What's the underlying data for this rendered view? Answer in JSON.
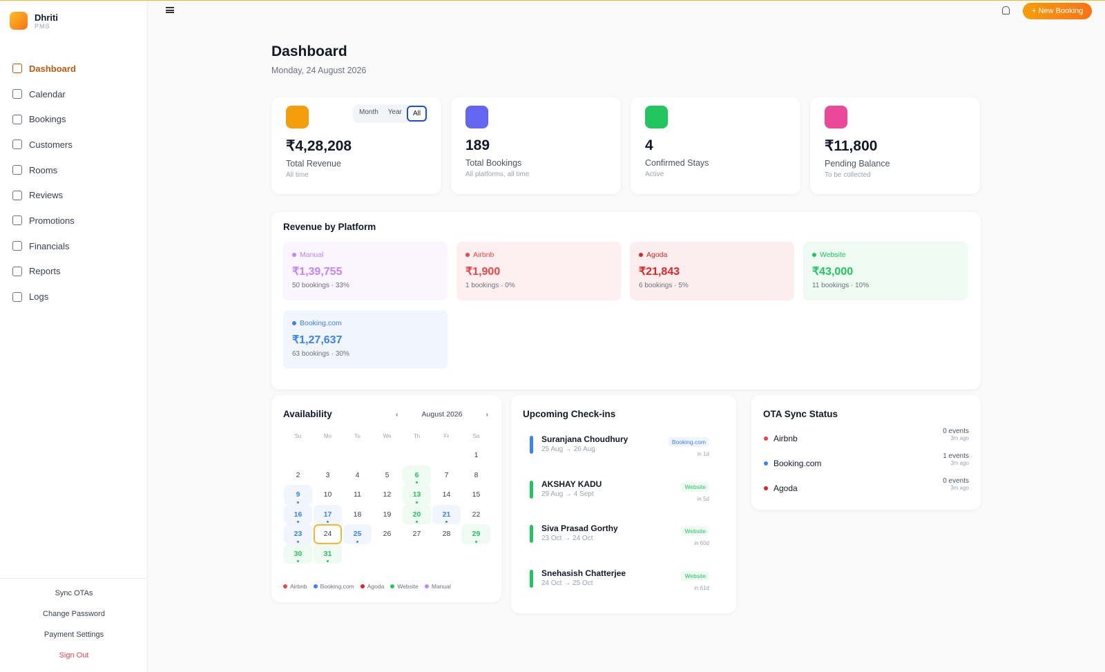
{
  "brand": {
    "name": "Dhriti",
    "sub": "PMS"
  },
  "nav": [
    "Dashboard",
    "Calendar",
    "Bookings",
    "Customers",
    "Rooms",
    "Reviews",
    "Promotions",
    "Financials",
    "Reports",
    "Logs"
  ],
  "sidebar_actions": [
    "Sync OTAs",
    "Change Password",
    "Payment Settings",
    "Sign Out"
  ],
  "header": {
    "new_booking": "+ New Booking"
  },
  "page": {
    "title": "Dashboard",
    "date": "Monday, 24 August 2026"
  },
  "stat_filters": [
    "Month",
    "Year",
    "All"
  ],
  "stats": [
    {
      "value": "₹4,28,208",
      "label": "Total Revenue",
      "sub": "All time",
      "color": "#f59e0b"
    },
    {
      "value": "189",
      "label": "Total Bookings",
      "sub": "All platforms, all time",
      "color": "#6366f1"
    },
    {
      "value": "4",
      "label": "Confirmed Stays",
      "sub": "Active",
      "color": "#22c55e"
    },
    {
      "value": "₹11,800",
      "label": "Pending Balance",
      "sub": "To be collected",
      "color": "#ec4899"
    }
  ],
  "revenue": {
    "title": "Revenue by Platform",
    "platforms": [
      {
        "name": "Manual",
        "amount": "₹1,39,755",
        "detail": "50 bookings · 33%"
      },
      {
        "name": "Airbnb",
        "amount": "₹1,900",
        "detail": "1 bookings · 0%"
      },
      {
        "name": "Agoda",
        "amount": "₹21,843",
        "detail": "6 bookings · 5%"
      },
      {
        "name": "Website",
        "amount": "₹43,000",
        "detail": "11 bookings · 10%"
      },
      {
        "name": "Booking.com",
        "amount": "₹1,27,637",
        "detail": "63 bookings · 30%"
      }
    ]
  },
  "availability": {
    "title": "Availability",
    "prev": "‹",
    "month": "August 2026",
    "next": "›",
    "weekdays": [
      "Su",
      "Mo",
      "Tu",
      "We",
      "Th",
      "Fr",
      "Sa"
    ],
    "days": [
      null,
      null,
      null,
      null,
      null,
      null,
      {
        "day": 1
      },
      {
        "day": 2
      },
      {
        "day": 3
      },
      {
        "day": 4
      },
      {
        "day": 5
      },
      {
        "day": 6,
        "platform": "Website"
      },
      {
        "day": 7
      },
      {
        "day": 8
      },
      {
        "day": 9,
        "platform": "Booking.com"
      },
      {
        "day": 10
      },
      {
        "day": 11
      },
      {
        "day": 12
      },
      {
        "day": 13,
        "platform": "Website"
      },
      {
        "day": 14
      },
      {
        "day": 15
      },
      {
        "day": 16,
        "platform": "Booking.com"
      },
      {
        "day": 17,
        "platform": "Booking.com"
      },
      {
        "day": 18
      },
      {
        "day": 19
      },
      {
        "day": 20,
        "platform": "Website"
      },
      {
        "day": 21,
        "platform": "Booking.com"
      },
      {
        "day": 22
      },
      {
        "day": 23,
        "platform": "Booking.com"
      },
      {
        "day": 24,
        "today": true
      },
      {
        "day": 25,
        "platform": "Booking.com"
      },
      {
        "day": 26
      },
      {
        "day": 27
      },
      {
        "day": 28
      },
      {
        "day": 29,
        "platform": "Website"
      },
      {
        "day": 30,
        "platform": "Website"
      },
      {
        "day": 31,
        "platform": "Website"
      }
    ],
    "legend": [
      {
        "name": "Airbnb",
        "color": "#ef4444"
      },
      {
        "name": "Booking.com",
        "color": "#3b82f6"
      },
      {
        "name": "Agoda",
        "color": "#dc2626"
      },
      {
        "name": "Website",
        "color": "#22c55e"
      },
      {
        "name": "Manual",
        "color": "#c084fc"
      }
    ]
  },
  "checkins": {
    "title": "Upcoming Check-ins",
    "items": [
      {
        "name": "Suranjana Choudhury",
        "dates": "25 Aug → 26 Aug",
        "platform": "Booking.com",
        "when": "in 1d"
      },
      {
        "name": "AKSHAY KADU",
        "dates": "29 Aug → 4 Sept",
        "platform": "Website",
        "when": "in 5d"
      },
      {
        "name": "Siva Prasad Gorthy",
        "dates": "23 Oct → 24 Oct",
        "platform": "Website",
        "when": "in 60d"
      },
      {
        "name": "Snehasish Chatterjee",
        "dates": "24 Oct → 25 Oct",
        "platform": "Website",
        "when": "in 61d"
      }
    ]
  },
  "ota": {
    "title": "OTA Sync Status",
    "items": [
      {
        "name": "Airbnb",
        "events": "0 events",
        "ago": "3m ago"
      },
      {
        "name": "Booking.com",
        "events": "1 events",
        "ago": "3m ago"
      },
      {
        "name": "Agoda",
        "events": "0 events",
        "ago": "3m ago"
      }
    ]
  }
}
